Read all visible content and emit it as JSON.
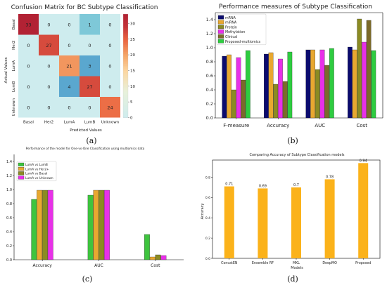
{
  "captions": [
    "(a)",
    "(b)",
    "(c)",
    "(d)"
  ],
  "chart_data": [
    {
      "type": "heatmap",
      "title": "Confusion Matrix for BC Subtype Classification",
      "xlabel": "Predicted Values",
      "ylabel": "Actual Values",
      "x_labels": [
        "Basal",
        "Her2",
        "LumA",
        "LumB",
        "Unknown"
      ],
      "y_labels": [
        "Basal",
        "Her2",
        "LumA",
        "LumB",
        "Unknown"
      ],
      "values": [
        [
          33,
          0,
          0,
          1,
          0
        ],
        [
          0,
          27,
          0,
          0,
          0
        ],
        [
          0,
          0,
          21,
          3,
          0
        ],
        [
          0,
          0,
          4,
          27,
          0
        ],
        [
          0,
          0,
          0,
          0,
          24
        ]
      ],
      "colorbar": {
        "min": 0,
        "max": 33,
        "ticks": [
          0,
          5,
          10,
          15,
          20,
          25,
          30
        ]
      }
    },
    {
      "type": "bar",
      "title": "Performance measures of Subtype Classification",
      "categories": [
        "F-measure",
        "Accuracy",
        "AUC",
        "Cost"
      ],
      "ylim": [
        0,
        1.5
      ],
      "yticks": [
        0.0,
        0.2,
        0.4,
        0.6,
        0.8,
        1.0,
        1.2,
        1.4
      ],
      "legend": "top-left",
      "series": [
        {
          "name": "mRNA",
          "color": "#0b0b6e",
          "values": [
            0.88,
            0.91,
            0.97,
            1.01
          ]
        },
        {
          "name": "miRNA",
          "color": "#e8a830",
          "values": [
            0.9,
            0.93,
            0.97,
            0.97
          ]
        },
        {
          "name": "Protein",
          "color": "#8b8b22",
          "values": [
            0.4,
            0.48,
            0.69,
            1.41
          ]
        },
        {
          "name": "Methylation",
          "color": "#e830e8",
          "values": [
            0.86,
            0.84,
            0.97,
            1.08
          ]
        },
        {
          "name": "Clinical",
          "color": "#7b6a2a",
          "values": [
            0.54,
            0.52,
            0.75,
            1.39
          ]
        },
        {
          "name": "Proposed-multiomics",
          "color": "#2ecc40",
          "values": [
            0.96,
            0.94,
            0.99,
            0.96
          ]
        }
      ]
    },
    {
      "type": "bar",
      "title": "Performance of the model for One-vs-One Classification using multiomics data",
      "categories": [
        "Accuracy",
        "AUC",
        "Cost"
      ],
      "ylim": [
        0,
        1.5
      ],
      "yticks": [
        0.0,
        0.2,
        0.4,
        0.6,
        0.8,
        1.0,
        1.2,
        1.4
      ],
      "legend": "top-left",
      "series": [
        {
          "name": "LumA vs LumB",
          "color": "#3ec43e",
          "values": [
            0.86,
            0.92,
            0.36
          ]
        },
        {
          "name": "LumA vs Her2+",
          "color": "#e8a830",
          "values": [
            0.99,
            0.99,
            0.04
          ]
        },
        {
          "name": "LumA vs Basal",
          "color": "#8b8b22",
          "values": [
            0.99,
            0.99,
            0.07
          ]
        },
        {
          "name": "LumA vs Unknown",
          "color": "#e830e8",
          "values": [
            0.99,
            0.99,
            0.06
          ]
        }
      ]
    },
    {
      "type": "bar",
      "title": "Comparing Accuracy of Subtype Classification models",
      "categories": [
        "ConcatEN",
        "Ensemble RF",
        "MKL",
        "DeepMO",
        "Proposed"
      ],
      "values": [
        0.71,
        0.69,
        0.7,
        0.78,
        0.94
      ],
      "labels": [
        "0.71",
        "0.69",
        "0.7",
        "0.78",
        "0.94"
      ],
      "xlabel": "Models",
      "ylabel": "Accuracy",
      "ylim": [
        0,
        0.97
      ],
      "yticks": [
        0.0,
        0.2,
        0.4,
        0.6,
        0.8
      ],
      "color": "#fbb21a"
    }
  ]
}
